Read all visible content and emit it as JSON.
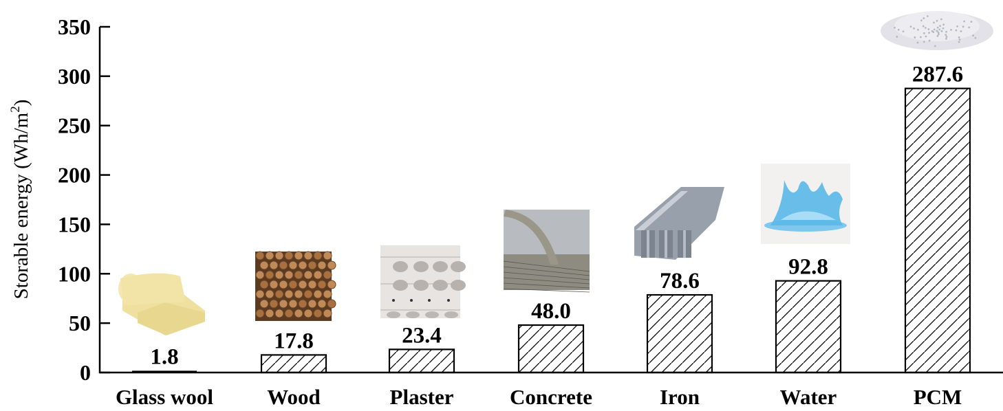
{
  "chart_data": {
    "type": "bar",
    "title": "",
    "xlabel": "",
    "ylabel": "Storable energy (Wh/m²)",
    "ylabel_main": "Storable energy (Wh/m",
    "ylabel_sup": "2",
    "ylabel_close": ")",
    "ylim": [
      0,
      350
    ],
    "yticks": [
      0,
      50,
      100,
      150,
      200,
      250,
      300,
      350
    ],
    "grid": false,
    "legend": null,
    "categories": [
      "Glass wool",
      "Wood",
      "Plaster",
      "Concrete",
      "Iron",
      "Water",
      "PCM"
    ],
    "values": [
      1.8,
      17.8,
      23.4,
      48.0,
      78.6,
      92.8,
      287.6
    ],
    "value_labels": [
      "1.8",
      "17.8",
      "23.4",
      "48.0",
      "78.6",
      "92.8",
      "287.6"
    ],
    "bar_pattern": "diagonal-hatch",
    "bar_images": [
      "glass-wool-roll",
      "wood-logs",
      "plaster-panel",
      "concrete-pour",
      "iron-beams",
      "water-splash",
      "pcm-powder"
    ]
  },
  "colors": {
    "axis": "#000000",
    "bar_stroke": "#000000",
    "bar_fill": "#ffffff",
    "glass_wool": "#f2e6a8",
    "wood": "#8a5a32",
    "plaster": "#e6e3e0",
    "concrete": "#9a9a90",
    "iron": "#8a93a0",
    "water": "#5ab8e8",
    "pcm": "#e4e4ea"
  }
}
